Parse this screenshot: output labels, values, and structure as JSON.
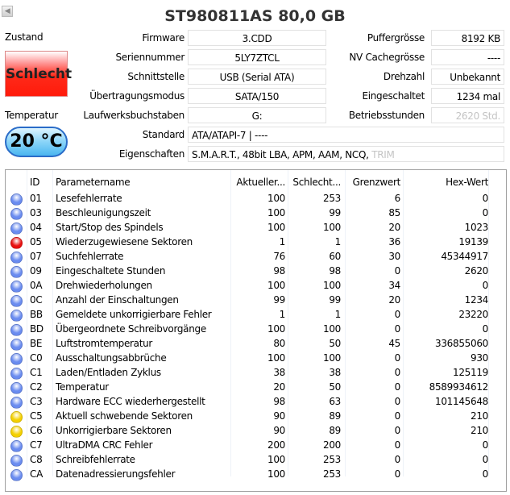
{
  "window": {
    "prev_icon": "arrow-left-icon",
    "title": "ST980811AS  80,0 GB"
  },
  "status": {
    "label": "Zustand",
    "value": "Schlecht",
    "color": "#ff2a1a"
  },
  "temperature": {
    "label": "Temperatur",
    "value": "20 °C",
    "color": "#4ab6f0"
  },
  "info_left": [
    {
      "label": "Firmware",
      "value": "3.CDD"
    },
    {
      "label": "Seriennummer",
      "value": "5LY7ZTCL"
    },
    {
      "label": "Schnittstelle",
      "value": "USB (Serial ATA)"
    },
    {
      "label": "Übertragungsmodus",
      "value": "SATA/150"
    },
    {
      "label": "Laufwerksbuchstaben",
      "value": "G:"
    }
  ],
  "info_right": [
    {
      "label": "Puffergrösse",
      "value": "8192 KB"
    },
    {
      "label": "NV Cachegrösse",
      "value": "----"
    },
    {
      "label": "Drehzahl",
      "value": "Unbekannt"
    },
    {
      "label": "Eingeschaltet",
      "value": "1234 mal"
    },
    {
      "label": "Betriebsstunden",
      "value": "2620 Std.",
      "disabled": true
    }
  ],
  "standard": {
    "label": "Standard",
    "value": "ATA/ATAPI-7 | ----"
  },
  "features": {
    "label": "Eigenschaften",
    "value": "S.M.A.R.T., 48bit LBA, APM, AAM, NCQ, ",
    "disabled_value": "TRIM"
  },
  "smart": {
    "columns": [
      "ID",
      "Parametername",
      "Aktueller...",
      "Schlecht...",
      "Grenzwert",
      "Hex-Wert"
    ],
    "status_colors": {
      "good": "#6a8cf0",
      "bad": "#e81010",
      "caution": "#f4d000"
    },
    "rows": [
      {
        "status": "good",
        "id": "01",
        "name": "Lesefehlerrate",
        "current": "100",
        "worst": "253",
        "threshold": "6",
        "raw": "0"
      },
      {
        "status": "good",
        "id": "03",
        "name": "Beschleunigungszeit",
        "current": "100",
        "worst": "99",
        "threshold": "85",
        "raw": "0"
      },
      {
        "status": "good",
        "id": "04",
        "name": "Start/Stop des Spindels",
        "current": "100",
        "worst": "100",
        "threshold": "20",
        "raw": "1023"
      },
      {
        "status": "bad",
        "id": "05",
        "name": "Wiederzugewiesene Sektoren",
        "current": "1",
        "worst": "1",
        "threshold": "36",
        "raw": "19139"
      },
      {
        "status": "good",
        "id": "07",
        "name": "Suchfehlerrate",
        "current": "76",
        "worst": "60",
        "threshold": "30",
        "raw": "45344917"
      },
      {
        "status": "good",
        "id": "09",
        "name": "Eingeschaltete Stunden",
        "current": "98",
        "worst": "98",
        "threshold": "0",
        "raw": "2620"
      },
      {
        "status": "good",
        "id": "0A",
        "name": "Drehwiederholungen",
        "current": "100",
        "worst": "100",
        "threshold": "34",
        "raw": "0"
      },
      {
        "status": "good",
        "id": "0C",
        "name": "Anzahl der Einschaltungen",
        "current": "99",
        "worst": "99",
        "threshold": "20",
        "raw": "1234"
      },
      {
        "status": "good",
        "id": "BB",
        "name": "Gemeldete unkorrigierbare Fehler",
        "current": "1",
        "worst": "1",
        "threshold": "0",
        "raw": "23220"
      },
      {
        "status": "good",
        "id": "BD",
        "name": "Übergeordnete Schreibvorgänge",
        "current": "100",
        "worst": "100",
        "threshold": "0",
        "raw": "0"
      },
      {
        "status": "good",
        "id": "BE",
        "name": "Luftstromtemperatur",
        "current": "80",
        "worst": "50",
        "threshold": "45",
        "raw": "336855060"
      },
      {
        "status": "good",
        "id": "C0",
        "name": "Ausschaltungsabbrüche",
        "current": "100",
        "worst": "100",
        "threshold": "0",
        "raw": "930"
      },
      {
        "status": "good",
        "id": "C1",
        "name": "Laden/Entladen Zyklus",
        "current": "38",
        "worst": "38",
        "threshold": "0",
        "raw": "125119"
      },
      {
        "status": "good",
        "id": "C2",
        "name": "Temperatur",
        "current": "20",
        "worst": "50",
        "threshold": "0",
        "raw": "8589934612"
      },
      {
        "status": "good",
        "id": "C3",
        "name": "Hardware ECC wiederhergestellt",
        "current": "98",
        "worst": "63",
        "threshold": "0",
        "raw": "101145648"
      },
      {
        "status": "caution",
        "id": "C5",
        "name": "Aktuell schwebende Sektoren",
        "current": "90",
        "worst": "89",
        "threshold": "0",
        "raw": "210"
      },
      {
        "status": "caution",
        "id": "C6",
        "name": "Unkorrigierbare Sektoren",
        "current": "90",
        "worst": "89",
        "threshold": "0",
        "raw": "210"
      },
      {
        "status": "good",
        "id": "C7",
        "name": "UltraDMA CRC Fehler",
        "current": "200",
        "worst": "200",
        "threshold": "0",
        "raw": "0"
      },
      {
        "status": "good",
        "id": "C8",
        "name": "Schreibfehlerrate",
        "current": "100",
        "worst": "253",
        "threshold": "0",
        "raw": "0"
      },
      {
        "status": "good",
        "id": "CA",
        "name": "Datenadressierungsfehler",
        "current": "100",
        "worst": "253",
        "threshold": "0",
        "raw": "0"
      }
    ]
  }
}
